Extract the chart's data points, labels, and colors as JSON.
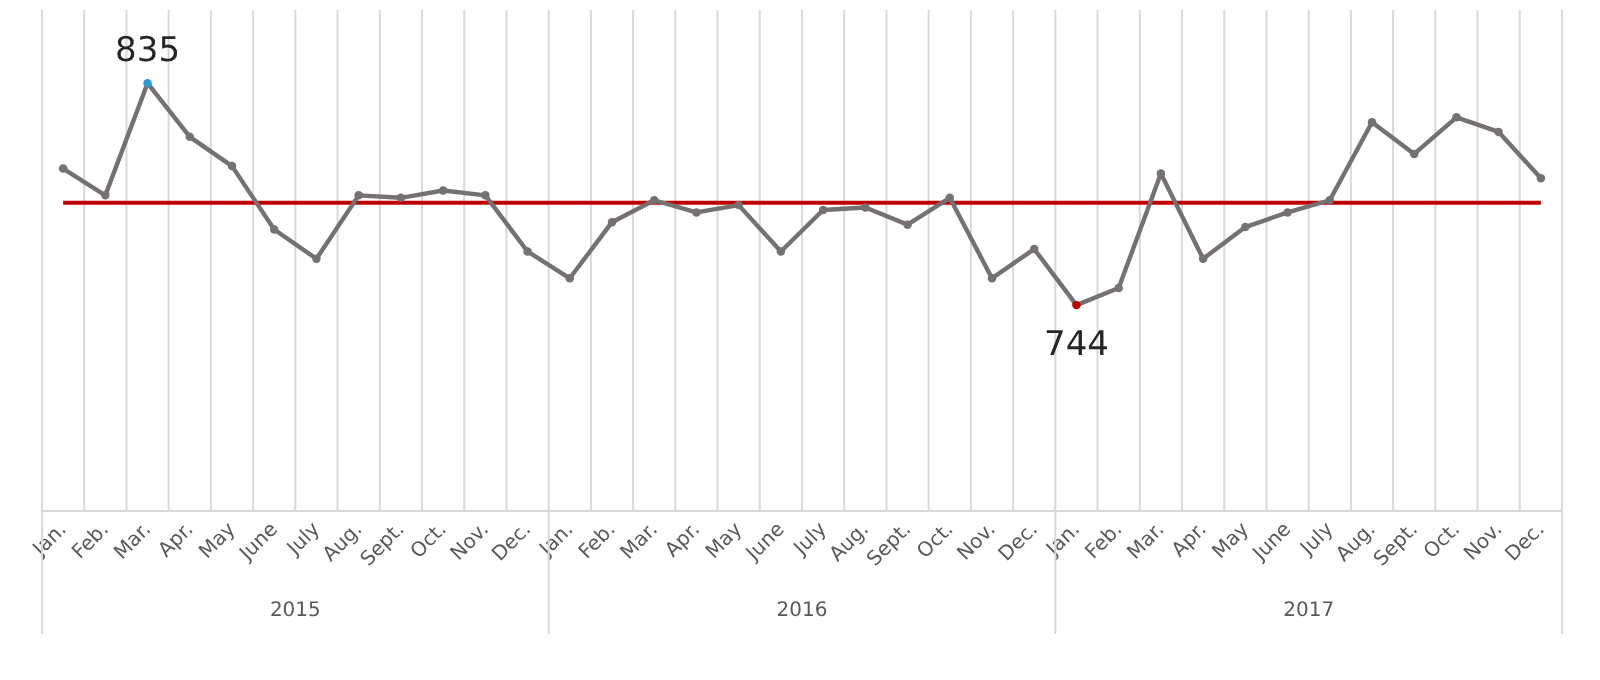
{
  "chart_data": {
    "type": "line",
    "categories": [
      "Jan.",
      "Feb.",
      "Mar.",
      "Apr.",
      "May",
      "June",
      "July",
      "Aug.",
      "Sept.",
      "Oct.",
      "Nov.",
      "Dec.",
      "Jan.",
      "Feb.",
      "Mar.",
      "Apr.",
      "May",
      "June",
      "July",
      "Aug.",
      "Sept.",
      "Oct.",
      "Nov.",
      "Dec.",
      "Jan.",
      "Feb.",
      "Mar.",
      "Apr.",
      "May",
      "June",
      "July",
      "Aug.",
      "Sept.",
      "Oct.",
      "Nov.",
      "Dec."
    ],
    "series": [
      {
        "color": "#767171",
        "colors": [
          "#767171",
          "#767171",
          "#2e9bd6",
          "#767171",
          "#767171",
          "#767171",
          "#767171",
          "#767171",
          "#767171",
          "#767171",
          "#767171",
          "#767171",
          "#767171",
          "#767171",
          "#767171",
          "#767171",
          "#767171",
          "#767171",
          "#767171",
          "#767171",
          "#767171",
          "#767171",
          "#767171",
          "#767171",
          "#c00000",
          "#767171",
          "#767171",
          "#767171",
          "#767171",
          "#767171",
          "#767171",
          "#767171",
          "#767171",
          "#767171",
          "#767171",
          "#767171"
        ],
        "values": [
          800,
          789,
          835,
          813,
          801,
          775,
          763,
          789,
          788,
          791,
          789,
          766,
          755,
          778,
          787,
          782,
          785,
          766,
          783,
          784,
          777,
          788,
          755,
          767,
          744,
          751,
          798,
          763,
          776,
          782,
          787,
          819,
          806,
          821,
          815,
          796
        ],
        "value_labels": [
          null,
          null,
          "835",
          null,
          null,
          null,
          null,
          null,
          null,
          null,
          null,
          null,
          null,
          null,
          null,
          null,
          null,
          null,
          null,
          null,
          null,
          null,
          null,
          null,
          "744",
          null,
          null,
          null,
          null,
          null,
          null,
          null,
          null,
          null,
          null,
          null
        ]
      }
    ],
    "ref_lines": [
      {
        "axis": "y",
        "value": 786,
        "color": "#c00000"
      }
    ],
    "annotations": [
      "2015",
      "2016",
      "2017"
    ],
    "ylim": [
      660,
      865
    ],
    "tick_labels": "x",
    "grid": "x",
    "marker": "circle",
    "line_style": "solid"
  }
}
